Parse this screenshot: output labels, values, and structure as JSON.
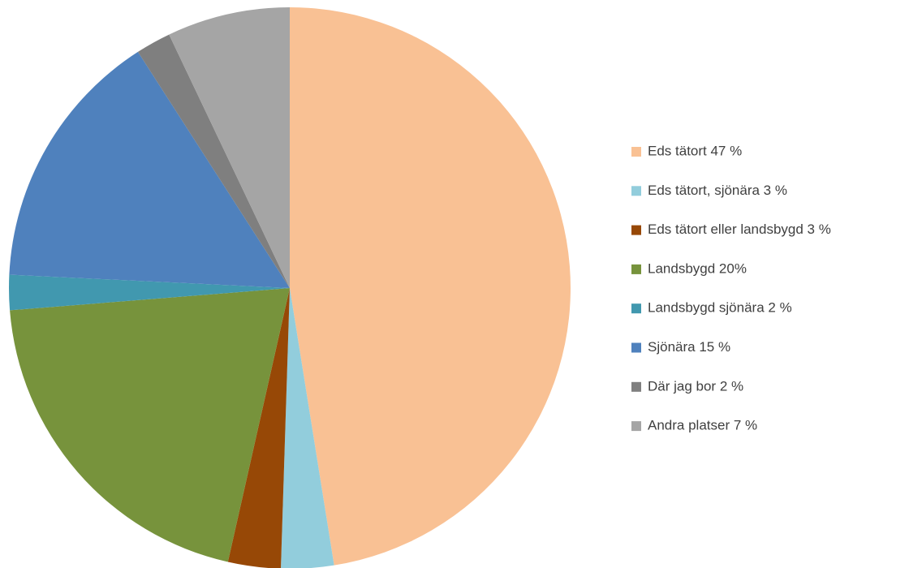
{
  "chart_data": {
    "type": "pie",
    "categories": [
      "Eds tätort 47 %",
      "Eds tätort, sjönära 3 %",
      "Eds tätort eller landsbygd  3 %",
      "Landsbygd 20%",
      "Landsbygd sjönära 2 %",
      "Sjönära 15 %",
      "Där jag bor 2 %",
      "Andra platser 7 %"
    ],
    "values": [
      47,
      3,
      3,
      20,
      2,
      15,
      2,
      7
    ],
    "colors": [
      "#f9c194",
      "#92cddc",
      "#974806",
      "#77933c",
      "#4198af",
      "#4f81bd",
      "#7f7f7f",
      "#a5a5a5"
    ],
    "legend": "right"
  }
}
